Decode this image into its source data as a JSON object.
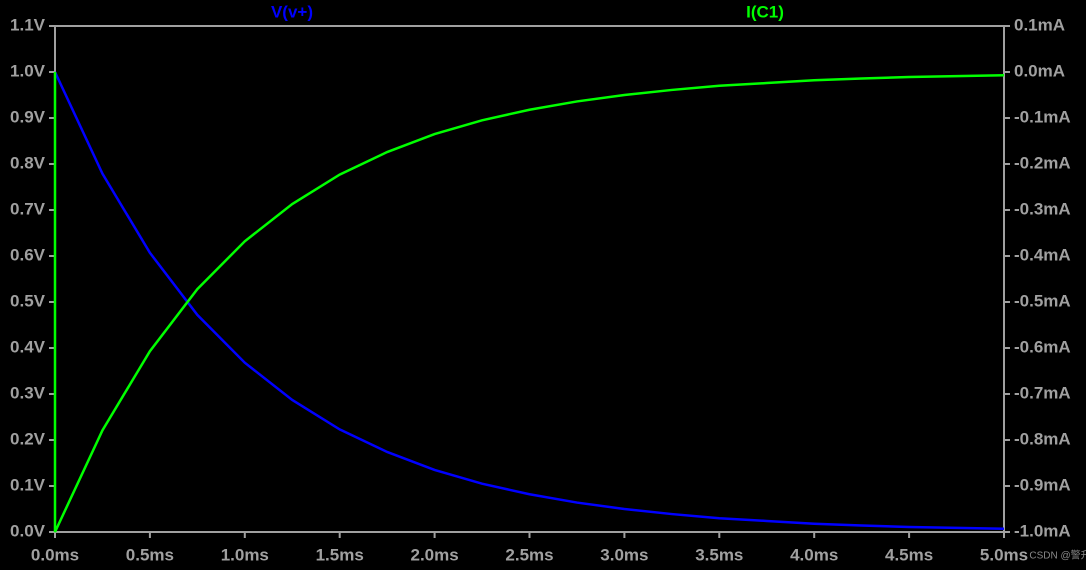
{
  "chart_data": {
    "type": "line",
    "series": [
      {
        "name": "V(v+)",
        "color": "#0000ff",
        "axis": "y",
        "x": [
          0,
          0.25,
          0.5,
          0.75,
          1,
          1.25,
          1.5,
          1.75,
          2,
          2.25,
          2.5,
          2.75,
          3,
          3.25,
          3.5,
          3.75,
          4,
          4.25,
          4.5,
          4.75,
          5
        ],
        "values": [
          1,
          0.779,
          0.607,
          0.472,
          0.368,
          0.287,
          0.223,
          0.174,
          0.135,
          0.105,
          0.082,
          0.064,
          0.05,
          0.039,
          0.03,
          0.024,
          0.018,
          0.014,
          0.011,
          0.009,
          0.007
        ]
      },
      {
        "name": "I(C1)",
        "color": "#00ff00",
        "axis": "y2",
        "x": [
          0,
          0,
          0.25,
          0.5,
          0.75,
          1,
          1.25,
          1.5,
          1.75,
          2,
          2.25,
          2.5,
          2.75,
          3,
          3.25,
          3.5,
          3.75,
          4,
          4.25,
          4.5,
          4.75,
          5
        ],
        "values": [
          0,
          -1,
          -0.779,
          -0.607,
          -0.472,
          -0.368,
          -0.287,
          -0.223,
          -0.174,
          -0.135,
          -0.105,
          -0.082,
          -0.064,
          -0.05,
          -0.039,
          -0.03,
          -0.024,
          -0.018,
          -0.014,
          -0.011,
          -0.009,
          -0.007
        ]
      }
    ],
    "xlim": [
      0,
      5
    ],
    "xticks": [
      {
        "value": 0,
        "label": "0.0ms"
      },
      {
        "value": 0.5,
        "label": "0.5ms"
      },
      {
        "value": 1,
        "label": "1.0ms"
      },
      {
        "value": 1.5,
        "label": "1.5ms"
      },
      {
        "value": 2,
        "label": "2.0ms"
      },
      {
        "value": 2.5,
        "label": "2.5ms"
      },
      {
        "value": 3,
        "label": "3.0ms"
      },
      {
        "value": 3.5,
        "label": "3.5ms"
      },
      {
        "value": 4,
        "label": "4.0ms"
      },
      {
        "value": 4.5,
        "label": "4.5ms"
      },
      {
        "value": 5,
        "label": "5.0ms"
      }
    ],
    "ylim": [
      0,
      1.1
    ],
    "yticks": [
      {
        "value": 0,
        "label": "0.0V"
      },
      {
        "value": 0.1,
        "label": "0.1V"
      },
      {
        "value": 0.2,
        "label": "0.2V"
      },
      {
        "value": 0.3,
        "label": "0.3V"
      },
      {
        "value": 0.4,
        "label": "0.4V"
      },
      {
        "value": 0.5,
        "label": "0.5V"
      },
      {
        "value": 0.6,
        "label": "0.6V"
      },
      {
        "value": 0.7,
        "label": "0.7V"
      },
      {
        "value": 0.8,
        "label": "0.8V"
      },
      {
        "value": 0.9,
        "label": "0.9V"
      },
      {
        "value": 1,
        "label": "1.0V"
      },
      {
        "value": 1.1,
        "label": "1.1V"
      }
    ],
    "y2lim": [
      -1,
      0.1
    ],
    "y2ticks": [
      {
        "value": -1,
        "label": "-1.0mA"
      },
      {
        "value": -0.9,
        "label": "-0.9mA"
      },
      {
        "value": -0.8,
        "label": "-0.8mA"
      },
      {
        "value": -0.7,
        "label": "-0.7mA"
      },
      {
        "value": -0.6,
        "label": "-0.6mA"
      },
      {
        "value": -0.5,
        "label": "-0.5mA"
      },
      {
        "value": -0.4,
        "label": "-0.4mA"
      },
      {
        "value": -0.3,
        "label": "-0.3mA"
      },
      {
        "value": -0.2,
        "label": "-0.2mA"
      },
      {
        "value": -0.1,
        "label": "-0.1mA"
      },
      {
        "value": 0,
        "label": "0.0mA"
      },
      {
        "value": 0.1,
        "label": "0.1mA"
      }
    ],
    "watermark": "CSDN @警升"
  }
}
